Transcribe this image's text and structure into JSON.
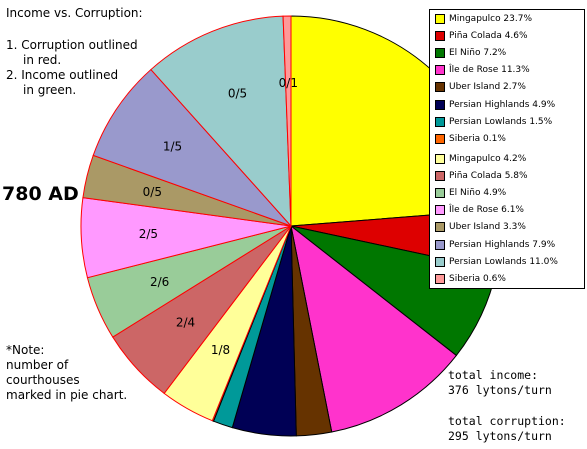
{
  "chart_data": {
    "type": "pie",
    "title": "Income vs. Corruption:",
    "notes": [
      "1. Corruption outlined",
      "in red.",
      "2. Income outlined",
      "in green."
    ],
    "year_label": "780 AD",
    "footnote": [
      "*Note:",
      "number of",
      "courthouses",
      "marked in pie chart."
    ],
    "income_legend": [
      {
        "label": "Mingapulco 23.7%",
        "color": "#ffff00"
      },
      {
        "label": "Piña Colada 4.6%",
        "color": "#dd0000"
      },
      {
        "label": "El Niño 7.2%",
        "color": "#007700"
      },
      {
        "label": "Île de Rose 11.3%",
        "color": "#ff33cc"
      },
      {
        "label": "Uber Island 2.7%",
        "color": "#663300"
      },
      {
        "label": "Persian Highlands 4.9%",
        "color": "#000055"
      },
      {
        "label": "Persian Lowlands 1.5%",
        "color": "#009999"
      },
      {
        "label": "Siberia 0.1%",
        "color": "#ff6600"
      }
    ],
    "corruption_legend": [
      {
        "label": "Mingapulco 4.2%",
        "color": "#ffff99"
      },
      {
        "label": "Piña Colada 5.8%",
        "color": "#cc6666"
      },
      {
        "label": "El Niño 4.9%",
        "color": "#99cc99"
      },
      {
        "label": "Île de Rose 6.1%",
        "color": "#ff99ff"
      },
      {
        "label": "Uber Island 3.3%",
        "color": "#aa9966"
      },
      {
        "label": "Persian Highlands 7.9%",
        "color": "#9999cc"
      },
      {
        "label": "Persian Lowlands 11.0%",
        "color": "#99cccc"
      },
      {
        "label": "Siberia 0.6%",
        "color": "#ff9999"
      }
    ],
    "slices": [
      {
        "name": "Mingapulco",
        "kind": "income",
        "value": 23.7,
        "color": "#ffff00"
      },
      {
        "name": "Piña Colada",
        "kind": "income",
        "value": 4.6,
        "color": "#dd0000"
      },
      {
        "name": "El Niño",
        "kind": "income",
        "value": 7.2,
        "color": "#007700"
      },
      {
        "name": "Île de Rose",
        "kind": "income",
        "value": 11.3,
        "color": "#ff33cc"
      },
      {
        "name": "Uber Island",
        "kind": "income",
        "value": 2.7,
        "color": "#663300"
      },
      {
        "name": "Persian Highlands",
        "kind": "income",
        "value": 4.9,
        "color": "#000055"
      },
      {
        "name": "Persian Lowlands",
        "kind": "income",
        "value": 1.5,
        "color": "#009999"
      },
      {
        "name": "Siberia",
        "kind": "income",
        "value": 0.1,
        "color": "#ff6600"
      },
      {
        "name": "Mingapulco",
        "kind": "corruption",
        "value": 4.2,
        "color": "#ffff99",
        "label": "1/8"
      },
      {
        "name": "Piña Colada",
        "kind": "corruption",
        "value": 5.8,
        "color": "#cc6666",
        "label": "2/4"
      },
      {
        "name": "El Niño",
        "kind": "corruption",
        "value": 4.9,
        "color": "#99cc99",
        "label": "2/6"
      },
      {
        "name": "Île de Rose",
        "kind": "corruption",
        "value": 6.1,
        "color": "#ff99ff",
        "label": "2/5"
      },
      {
        "name": "Uber Island",
        "kind": "corruption",
        "value": 3.3,
        "color": "#aa9966",
        "label": "0/5"
      },
      {
        "name": "Persian Highlands",
        "kind": "corruption",
        "value": 7.9,
        "color": "#9999cc",
        "label": "1/5"
      },
      {
        "name": "Persian Lowlands",
        "kind": "corruption",
        "value": 11.0,
        "color": "#99cccc",
        "label": "0/5"
      },
      {
        "name": "Siberia",
        "kind": "corruption",
        "value": 0.6,
        "color": "#ff9999",
        "label": "0/1"
      }
    ],
    "totals": {
      "income_label": "total income:",
      "income_value": "376 lytons/turn",
      "corruption_label": "total corruption:",
      "corruption_value": "295 lytons/turn"
    }
  }
}
